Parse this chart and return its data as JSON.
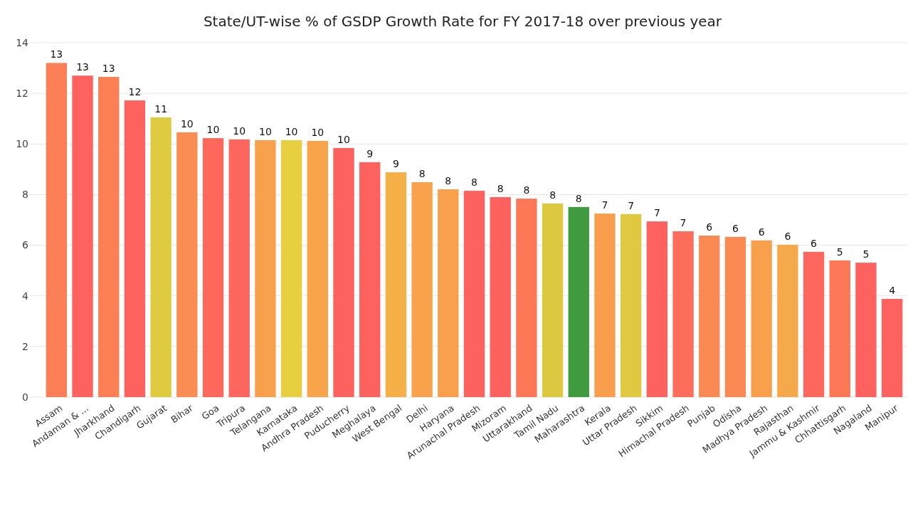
{
  "chart_data": {
    "type": "bar",
    "title": "State/UT-wise % of GSDP Growth Rate for FY 2017-18 over previous year",
    "categories": [
      "Assam",
      "Andaman & ...",
      "Jharkhand",
      "Chandigarh",
      "Gujarat",
      "Bihar",
      "Goa",
      "Tripura",
      "Telangana",
      "Karnataka",
      "Andhra Pradesh",
      "Puducherry",
      "Meghalaya",
      "West Bengal",
      "Delhi",
      "Haryana",
      "Arunachal Pradesh",
      "Mizoram",
      "Uttarakhand",
      "Tamil Nadu",
      "Maharashtra",
      "Kerala",
      "Uttar Pradesh",
      "Sikkim",
      "Himachal Pradesh",
      "Punjab",
      "Odisha",
      "Madhya Pradesh",
      "Rajasthan",
      "Jammu & Kashmir",
      "Chhattisgarh",
      "Nagaland",
      "Manipur"
    ],
    "values": [
      13.2,
      12.7,
      12.65,
      11.72,
      11.05,
      10.46,
      10.23,
      10.18,
      10.15,
      10.15,
      10.12,
      9.84,
      9.28,
      8.88,
      8.49,
      8.21,
      8.15,
      7.9,
      7.84,
      7.65,
      7.51,
      7.25,
      7.23,
      6.94,
      6.55,
      6.38,
      6.33,
      6.19,
      6.02,
      5.74,
      5.4,
      5.31,
      3.88
    ],
    "value_labels": [
      "13",
      "13",
      "13",
      "12",
      "11",
      "10",
      "10",
      "10",
      "10",
      "10",
      "10",
      "10",
      "9",
      "9",
      "8",
      "8",
      "8",
      "8",
      "8",
      "8",
      "8",
      "7",
      "7",
      "7",
      "7",
      "6",
      "6",
      "6",
      "6",
      "6",
      "5",
      "5",
      "4"
    ],
    "colors": [
      "#fc7f56",
      "#fd625e",
      "#fc7f56",
      "#fd625e",
      "#dfcb3f",
      "#f98d53",
      "#fd685d",
      "#fd665d",
      "#f7a14c",
      "#e8cf3f",
      "#f7a44b",
      "#fd625e",
      "#fd625e",
      "#f6b048",
      "#f8a24c",
      "#f8a04c",
      "#fd625e",
      "#fd625e",
      "#fc7856",
      "#dcc940",
      "#409a40",
      "#f89e4c",
      "#e0c940",
      "#fd625e",
      "#fc6d5a",
      "#fa8a53",
      "#fa8a53",
      "#f8a04c",
      "#f6a94a",
      "#fd675d",
      "#fc7856",
      "#fd625e",
      "#fd625e"
    ],
    "ylim": [
      0,
      14
    ],
    "yticks": [
      0,
      2,
      4,
      6,
      8,
      10,
      12,
      14
    ],
    "grid": "y"
  }
}
